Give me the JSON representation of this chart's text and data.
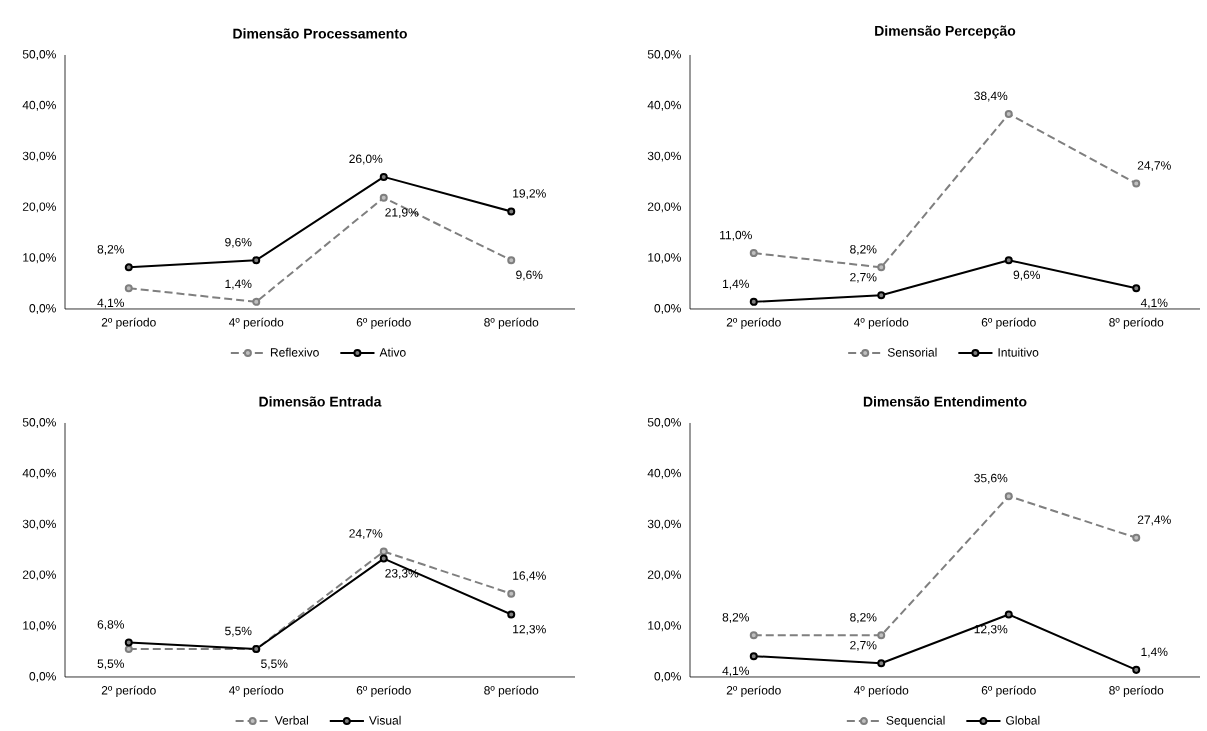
{
  "chart_data": [
    {
      "type": "line",
      "title": "Dimensão Processamento",
      "categories": [
        "2º período",
        "4º período",
        "6º período",
        "8º período"
      ],
      "ylim": [
        0,
        50
      ],
      "yticks": [
        {
          "value": 0,
          "label": "0,0%"
        },
        {
          "value": 10,
          "label": "10,0%"
        },
        {
          "value": 20,
          "label": "20,0%"
        },
        {
          "value": 30,
          "label": "30,0%"
        },
        {
          "value": 40,
          "label": "40,0%"
        },
        {
          "value": 50,
          "label": "50,0%"
        }
      ],
      "legend": "bottom",
      "marker": "circle",
      "grid": false,
      "series": [
        {
          "name": "Reflexivo",
          "color": "#7f7f7f",
          "line_style": "dashed",
          "values": [
            4.1,
            1.4,
            21.9,
            9.6
          ],
          "value_labels": [
            "4,1%",
            "1,4%",
            "21,9%",
            "9,6%"
          ]
        },
        {
          "name": "Ativo",
          "color": "#000000",
          "line_style": "solid",
          "values": [
            8.2,
            9.6,
            26.0,
            19.2
          ],
          "value_labels": [
            "8,2%",
            "9,6%",
            "26,0%",
            "19,2%"
          ]
        }
      ]
    },
    {
      "type": "line",
      "title": "Dimensão Percepção",
      "categories": [
        "2º período",
        "4º período",
        "6º período",
        "8º período"
      ],
      "ylim": [
        0,
        50
      ],
      "yticks": [
        {
          "value": 0,
          "label": "0,0%"
        },
        {
          "value": 10,
          "label": "10,0%"
        },
        {
          "value": 20,
          "label": "20,0%"
        },
        {
          "value": 30,
          "label": "30,0%"
        },
        {
          "value": 40,
          "label": "40,0%"
        },
        {
          "value": 50,
          "label": "50,0%"
        }
      ],
      "legend": "bottom",
      "marker": "circle",
      "grid": false,
      "series": [
        {
          "name": "Sensorial",
          "color": "#7f7f7f",
          "line_style": "dashed",
          "values": [
            11.0,
            8.2,
            38.4,
            24.7
          ],
          "value_labels": [
            "11,0%",
            "8,2%",
            "38,4%",
            "24,7%"
          ]
        },
        {
          "name": "Intuitivo",
          "color": "#000000",
          "line_style": "solid",
          "values": [
            1.4,
            2.7,
            9.6,
            4.1
          ],
          "value_labels": [
            "1,4%",
            "2,7%",
            "9,6%",
            "4,1%"
          ]
        }
      ]
    },
    {
      "type": "line",
      "title": "Dimensão Entrada",
      "categories": [
        "2º período",
        "4º período",
        "6º período",
        "8º período"
      ],
      "ylim": [
        0,
        50
      ],
      "yticks": [
        {
          "value": 0,
          "label": "0,0%"
        },
        {
          "value": 10,
          "label": "10,0%"
        },
        {
          "value": 20,
          "label": "20,0%"
        },
        {
          "value": 30,
          "label": "30,0%"
        },
        {
          "value": 40,
          "label": "40,0%"
        },
        {
          "value": 50,
          "label": "50,0%"
        }
      ],
      "legend": "bottom",
      "marker": "circle",
      "grid": false,
      "series": [
        {
          "name": "Verbal",
          "color": "#7f7f7f",
          "line_style": "dashed",
          "values": [
            5.5,
            5.5,
            24.7,
            16.4
          ],
          "value_labels": [
            "5,5%",
            "5,5%",
            "24,7%",
            "16,4%"
          ]
        },
        {
          "name": "Visual",
          "color": "#000000",
          "line_style": "solid",
          "values": [
            6.8,
            5.5,
            23.3,
            12.3
          ],
          "value_labels": [
            "6,8%",
            "5,5%",
            "23,3%",
            "12,3%"
          ]
        }
      ]
    },
    {
      "type": "line",
      "title": "Dimensão Entendimento",
      "categories": [
        "2º período",
        "4º período",
        "6º período",
        "8º período"
      ],
      "ylim": [
        0,
        50
      ],
      "yticks": [
        {
          "value": 0,
          "label": "0,0%"
        },
        {
          "value": 10,
          "label": "10,0%"
        },
        {
          "value": 20,
          "label": "20,0%"
        },
        {
          "value": 30,
          "label": "30,0%"
        },
        {
          "value": 40,
          "label": "40,0%"
        },
        {
          "value": 50,
          "label": "50,0%"
        }
      ],
      "legend": "bottom",
      "marker": "circle",
      "grid": false,
      "series": [
        {
          "name": "Sequencial",
          "color": "#7f7f7f",
          "line_style": "dashed",
          "values": [
            8.2,
            8.2,
            35.6,
            27.4
          ],
          "value_labels": [
            "8,2%",
            "8,2%",
            "35,6%",
            "27,4%"
          ]
        },
        {
          "name": "Global",
          "color": "#000000",
          "line_style": "solid",
          "values": [
            4.1,
            2.7,
            12.3,
            1.4
          ],
          "value_labels": [
            "4,1%",
            "2,7%",
            "12,3%",
            "1,4%"
          ]
        }
      ]
    }
  ]
}
